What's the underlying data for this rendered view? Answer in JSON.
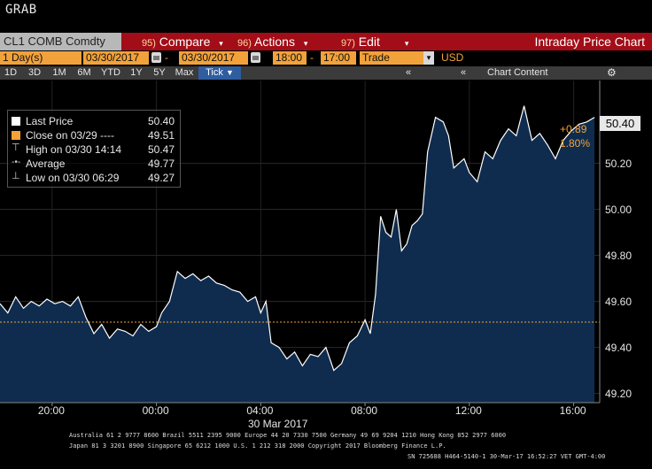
{
  "window": {
    "grab_label": "GRAB"
  },
  "toolbar": {
    "ticker": "CL1 COMB Comdty",
    "buttons": [
      {
        "num": "95)",
        "label": "Compare"
      },
      {
        "num": "96)",
        "label": "Actions"
      },
      {
        "num": "97)",
        "label": "Edit"
      }
    ],
    "title": "Intraday Price Chart"
  },
  "range_bar": {
    "period": "1 Day(s)",
    "start_date": "03/30/2017",
    "dash": "-",
    "end_date": "03/30/2017",
    "start_time": "18:00",
    "time_dash": "-",
    "end_time": "17:00",
    "event": "Trade",
    "currency": "USD"
  },
  "timeframes": {
    "items": [
      "1D",
      "3D",
      "1M",
      "6M",
      "YTD",
      "1Y",
      "5Y",
      "Max"
    ],
    "selected": "Tick"
  },
  "chart_controls": {
    "collapse_left": "«",
    "collapse_right": "«",
    "chart_content_label": "Chart Content"
  },
  "legend": {
    "items": [
      {
        "label": "Last Price",
        "value": "50.40",
        "icon": "white-square"
      },
      {
        "label": "Close on 03/29 ----",
        "value": "49.51",
        "icon": "orange-square"
      },
      {
        "label": "High on 03/30 14:14",
        "value": "50.47",
        "icon": "high-marker"
      },
      {
        "label": "Average",
        "value": "49.77",
        "icon": "average-marker"
      },
      {
        "label": "Low on 03/30 06:29",
        "value": "49.27",
        "icon": "low-marker"
      }
    ]
  },
  "price_readout": {
    "last_price": "50.40",
    "change": "+0.89",
    "change_pct": "1.80%"
  },
  "colors": {
    "toolbar_red": "#a30d17",
    "accent_orange": "#f2a23a",
    "area_fill": "#0f2c4e",
    "line": "#ffffff"
  },
  "chart_data": {
    "type": "area",
    "x_tick_labels": [
      "20:00",
      "00:00",
      "04:00",
      "08:00",
      "12:00",
      "16:00"
    ],
    "x_date_label": "30 Mar 2017",
    "y_tick_labels": [
      "50.20",
      "50.00",
      "49.80",
      "49.60",
      "49.40",
      "49.20"
    ],
    "ylim": [
      49.16,
      50.56
    ],
    "x_range_hours": [
      18,
      41
    ],
    "reference_line": {
      "label": "Close on 03/29",
      "value": 49.51
    },
    "series": [
      {
        "name": "Last Price",
        "x_hours": [
          18.0,
          18.3,
          18.6,
          18.9,
          19.2,
          19.5,
          19.8,
          20.1,
          20.4,
          20.7,
          21.0,
          21.3,
          21.6,
          21.9,
          22.2,
          22.5,
          22.8,
          23.1,
          23.4,
          23.7,
          24.0,
          24.2,
          24.5,
          24.8,
          25.1,
          25.4,
          25.7,
          26.0,
          26.3,
          26.6,
          26.9,
          27.2,
          27.5,
          27.8,
          28.0,
          28.2,
          28.4,
          28.7,
          29.0,
          29.3,
          29.6,
          29.9,
          30.2,
          30.5,
          30.8,
          31.1,
          31.4,
          31.7,
          32.0,
          32.2,
          32.4,
          32.6,
          32.8,
          33.0,
          33.2,
          33.4,
          33.6,
          33.8,
          34.0,
          34.2,
          34.4,
          34.7,
          35.0,
          35.2,
          35.4,
          35.6,
          35.8,
          36.0,
          36.3,
          36.6,
          36.9,
          37.2,
          37.5,
          37.8,
          38.1,
          38.4,
          38.7,
          39.0,
          39.3,
          39.6,
          39.9,
          40.2,
          40.5,
          40.8
        ],
        "values": [
          49.59,
          49.55,
          49.62,
          49.57,
          49.6,
          49.58,
          49.61,
          49.59,
          49.6,
          49.58,
          49.62,
          49.53,
          49.46,
          49.5,
          49.44,
          49.48,
          49.47,
          49.45,
          49.5,
          49.47,
          49.49,
          49.55,
          49.6,
          49.73,
          49.7,
          49.72,
          49.69,
          49.71,
          49.68,
          49.67,
          49.65,
          49.64,
          49.6,
          49.62,
          49.55,
          49.6,
          49.42,
          49.4,
          49.35,
          49.38,
          49.32,
          49.37,
          49.36,
          49.4,
          49.3,
          49.33,
          49.42,
          49.45,
          49.52,
          49.46,
          49.63,
          49.97,
          49.9,
          49.88,
          50.0,
          49.82,
          49.85,
          49.93,
          49.95,
          49.98,
          50.25,
          50.4,
          50.38,
          50.32,
          50.18,
          50.2,
          50.22,
          50.16,
          50.12,
          50.25,
          50.22,
          50.3,
          50.35,
          50.32,
          50.45,
          50.3,
          50.33,
          50.28,
          50.22,
          50.3,
          50.34,
          50.37,
          50.38,
          50.4
        ]
      }
    ],
    "summary": {
      "last": 50.4,
      "prev_close": 49.51,
      "high": 50.47,
      "average": 49.77,
      "low": 49.27
    }
  },
  "footer": {
    "line1": "Australia 61 2 9777 8600 Brazil 5511 2395 9000 Europe 44 20 7330 7500 Germany 49 69 9204 1210 Hong Kong 852 2977 6000",
    "line2": "Japan 81 3 3201 8900        Singapore 65 6212 1000         U.S. 1 212 318 2000                Copyright 2017 Bloomberg Finance L.P.",
    "line3": "SN 725688 H464-5140-1 30-Mar-17 16:52:27 VET   GMT-4:00"
  }
}
